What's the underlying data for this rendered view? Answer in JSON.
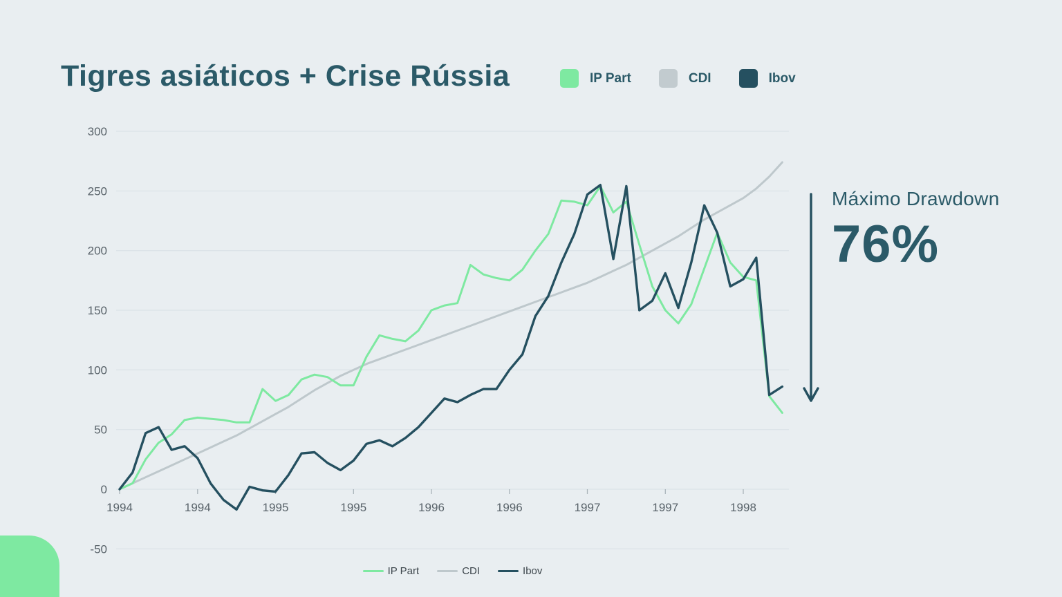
{
  "slide": {
    "title": "Tigres asiáticos + Crise Rússia",
    "background_color": "#e9eef1",
    "accent_text_color": "#2b5a68"
  },
  "legend_top": {
    "items": [
      {
        "label": "IP Part",
        "color": "#7ee9a1"
      },
      {
        "label": "CDI",
        "color": "#c2cbcf"
      },
      {
        "label": "Ibov",
        "color": "#255060"
      }
    ]
  },
  "legend_bottom": {
    "items": [
      {
        "label": "IP Part",
        "color": "#7ee9a1"
      },
      {
        "label": "CDI",
        "color": "#bec8cc"
      },
      {
        "label": "Ibov",
        "color": "#255060"
      }
    ]
  },
  "annotation": {
    "label": "Máximo Drawdown",
    "value": "76%",
    "arrow_color": "#255060"
  },
  "chart_data": {
    "type": "line",
    "title": "Tigres asiáticos + Crise Rússia",
    "x_unit": "months since Jan 1994",
    "x_tick_labels": [
      "1994",
      "1994",
      "1995",
      "1995",
      "1996",
      "1996",
      "1997",
      "1997",
      "1998"
    ],
    "x_tick_month_indices": [
      0,
      6,
      12,
      18,
      24,
      30,
      36,
      42,
      48
    ],
    "y_ticks": [
      300,
      250,
      200,
      150,
      100,
      50,
      0,
      -50
    ],
    "ylim": [
      -50,
      300
    ],
    "grid": true,
    "legend_position": "top-right and bottom-center",
    "gridline_color": "#dce3e8",
    "axis_text_color": "#59636a",
    "series": [
      {
        "name": "CDI",
        "color": "#bec8cc",
        "width": 3,
        "values": [
          0,
          5,
          10,
          15,
          20,
          25,
          30,
          35,
          40,
          45,
          51,
          57,
          63,
          69,
          76,
          83,
          89,
          95,
          100,
          105,
          109,
          113,
          117,
          121,
          125,
          129,
          133,
          137,
          141,
          145,
          149,
          153,
          157,
          161,
          165,
          169,
          173,
          178,
          183,
          188,
          194,
          200,
          206,
          212,
          219,
          226,
          232,
          238,
          244,
          252,
          262,
          274
        ]
      },
      {
        "name": "IP Part",
        "color": "#7ee9a1",
        "width": 3,
        "values": [
          0,
          5,
          25,
          39,
          46,
          58,
          60,
          59,
          58,
          56,
          56,
          84,
          74,
          79,
          92,
          96,
          94,
          87,
          87,
          111,
          129,
          126,
          124,
          133,
          150,
          154,
          156,
          188,
          180,
          177,
          175,
          184,
          200,
          214,
          242,
          241,
          238,
          254,
          232,
          241,
          205,
          170,
          150,
          139,
          155,
          185,
          215,
          190,
          178,
          175,
          78,
          64
        ]
      },
      {
        "name": "Ibov",
        "color": "#255060",
        "width": 3.4,
        "values": [
          0,
          14,
          47,
          52,
          33,
          36,
          26,
          5,
          -9,
          -17,
          2,
          -1,
          -2,
          12,
          30,
          31,
          22,
          16,
          24,
          38,
          41,
          36,
          43,
          52,
          64,
          76,
          73,
          79,
          84,
          84,
          100,
          113,
          145,
          162,
          190,
          214,
          247,
          255,
          193,
          254,
          150,
          158,
          181,
          152,
          190,
          238,
          215,
          170,
          176,
          194,
          79,
          86
        ]
      }
    ]
  }
}
